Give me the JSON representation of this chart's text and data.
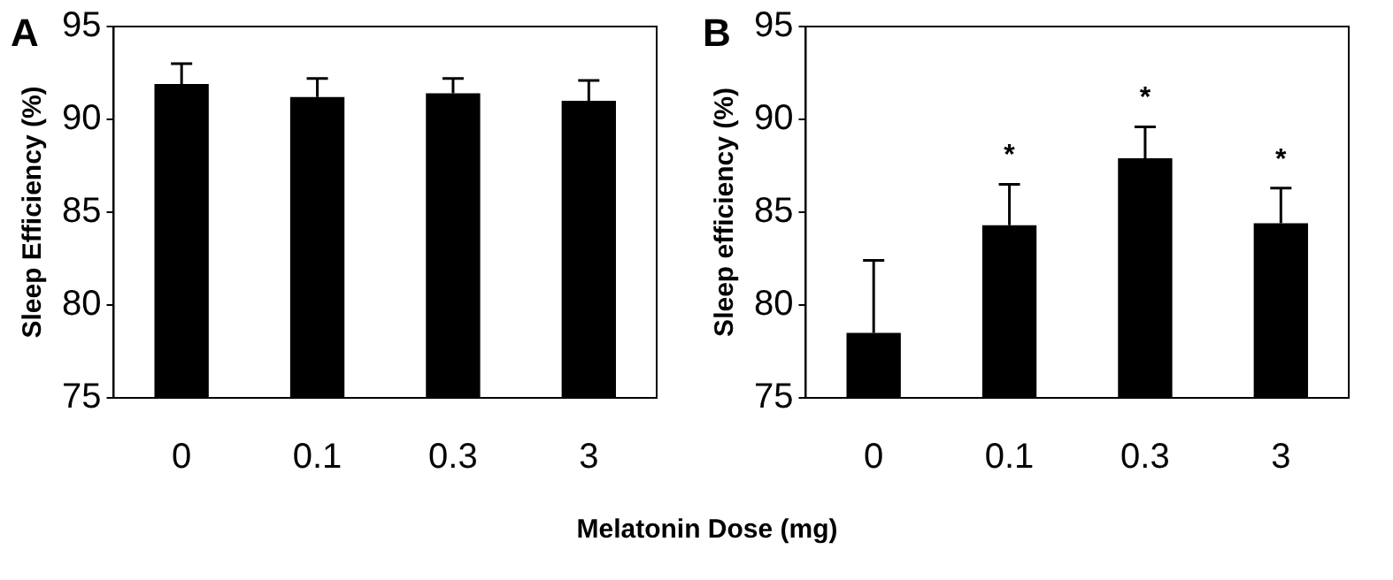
{
  "chart_data": [
    {
      "type": "bar",
      "title": "A",
      "ylabel": "Sleep Efficiency (%)",
      "xlabel": "Melatonin Dose (mg)",
      "categories": [
        "0",
        "0.1",
        "0.3",
        "3"
      ],
      "values": [
        91.9,
        91.2,
        91.4,
        91.0
      ],
      "color": "#000000",
      "errors": [
        [
          91.9,
          93.0
        ],
        [
          91.2,
          92.2
        ],
        [
          91.4,
          92.2
        ],
        [
          91.0,
          92.1
        ]
      ],
      "ylim": [
        75,
        95
      ],
      "yticks": [
        75,
        80,
        85,
        90,
        95
      ],
      "grid": false,
      "legend": false
    },
    {
      "type": "bar",
      "title": "B",
      "ylabel": "Sleep efficiency (%)",
      "categories": [
        "0",
        "0.1",
        "0.3",
        "3"
      ],
      "values": [
        78.5,
        84.3,
        87.9,
        84.4
      ],
      "color": "#000000",
      "errors": [
        [
          78.5,
          82.4
        ],
        [
          84.3,
          86.5
        ],
        [
          87.9,
          89.6
        ],
        [
          84.4,
          86.3
        ]
      ],
      "ylim": [
        75,
        95
      ],
      "yticks": [
        75,
        80,
        85,
        90,
        95
      ],
      "grid": false,
      "legend": false,
      "annotations": [
        {
          "text": "*",
          "x": "0.1",
          "y": 86.5
        },
        {
          "text": "*",
          "x": "0.3",
          "y": 89.6
        },
        {
          "text": "*",
          "x": "3",
          "y": 86.3
        }
      ]
    }
  ]
}
